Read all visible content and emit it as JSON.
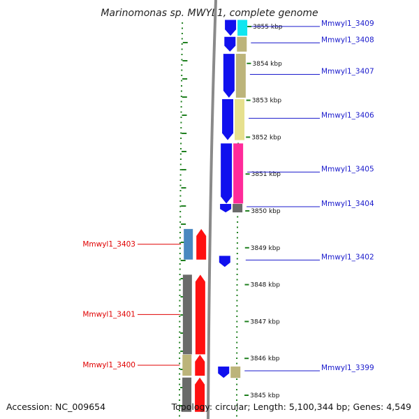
{
  "title": "Marinomonas sp. MWYL1, complete genome",
  "footer": {
    "accession": "Accession: NC_009654",
    "summary": "Topology: circular; Length: 5,100,344 bp; Genes: 4,549"
  },
  "colors": {
    "plus_label": "#1a1acc",
    "minus_label": "#e00000",
    "cds_plus": "#1010ee",
    "cds_minus": "#ff1010",
    "gc_skew_dots": "#208020",
    "backbone": "#8a8a8a",
    "cog_yellow": "#e6e08e",
    "cog_khaki": "#bcb47a",
    "cog_cyan": "#10e6f0",
    "cog_pink": "#ff2a9a",
    "cog_gray": "#6a6a6a",
    "cog_steelblue": "#4a88c0"
  },
  "ticks": [
    {
      "label": "3855 kbp",
      "kbp": 3855
    },
    {
      "label": "3854 kbp",
      "kbp": 3854
    },
    {
      "label": "3853 kbp",
      "kbp": 3853
    },
    {
      "label": "3852 kbp",
      "kbp": 3852
    },
    {
      "label": "3851 kbp",
      "kbp": 3851
    },
    {
      "label": "3850 kbp",
      "kbp": 3850
    },
    {
      "label": "3849 kbp",
      "kbp": 3849
    },
    {
      "label": "3848 kbp",
      "kbp": 3848
    },
    {
      "label": "3847 kbp",
      "kbp": 3847
    },
    {
      "label": "3846 kbp",
      "kbp": 3846
    },
    {
      "label": "3845 kbp",
      "kbp": 3845
    }
  ],
  "genes": [
    {
      "name": "Mmwyl1_3409",
      "strand": "+",
      "start_kbp": 3855.18,
      "end_kbp": 3854.75,
      "cog": "cog_cyan"
    },
    {
      "name": "Mmwyl1_3408",
      "strand": "+",
      "start_kbp": 3854.72,
      "end_kbp": 3854.32,
      "cog": "cog_khaki"
    },
    {
      "name": "Mmwyl1_3407",
      "strand": "+",
      "start_kbp": 3854.26,
      "end_kbp": 3853.07,
      "cog": "cog_khaki"
    },
    {
      "name": "Mmwyl1_3406",
      "strand": "+",
      "start_kbp": 3853.03,
      "end_kbp": 3851.92,
      "cog": "cog_yellow"
    },
    {
      "name": "Mmwyl1_3405",
      "strand": "+",
      "start_kbp": 3851.83,
      "end_kbp": 3850.2,
      "cog": "cog_pink"
    },
    {
      "name": "Mmwyl1_3404",
      "strand": "+",
      "start_kbp": 3850.19,
      "end_kbp": 3849.96,
      "cog": "cog_gray"
    },
    {
      "name": "Mmwyl1_3402",
      "strand": "+",
      "start_kbp": 3848.78,
      "end_kbp": 3848.48,
      "cog": ""
    },
    {
      "name": "Mmwyl1_3399",
      "strand": "+",
      "start_kbp": 3845.78,
      "end_kbp": 3845.47,
      "cog": "cog_khaki"
    },
    {
      "name": "Mmwyl1_3403",
      "strand": "-",
      "start_kbp": 3849.51,
      "end_kbp": 3848.68,
      "cog": "cog_steelblue"
    },
    {
      "name": "Mmwyl1_3401",
      "strand": "-",
      "start_kbp": 3848.27,
      "end_kbp": 3846.11,
      "cog": "cog_gray"
    },
    {
      "name": "Mmwyl1_3400",
      "strand": "-",
      "start_kbp": 3846.1,
      "end_kbp": 3845.53,
      "cog": "cog_khaki"
    },
    {
      "name": "",
      "strand": "-",
      "start_kbp": 3845.48,
      "end_kbp": 3844.55,
      "cog": "cog_gray"
    }
  ]
}
